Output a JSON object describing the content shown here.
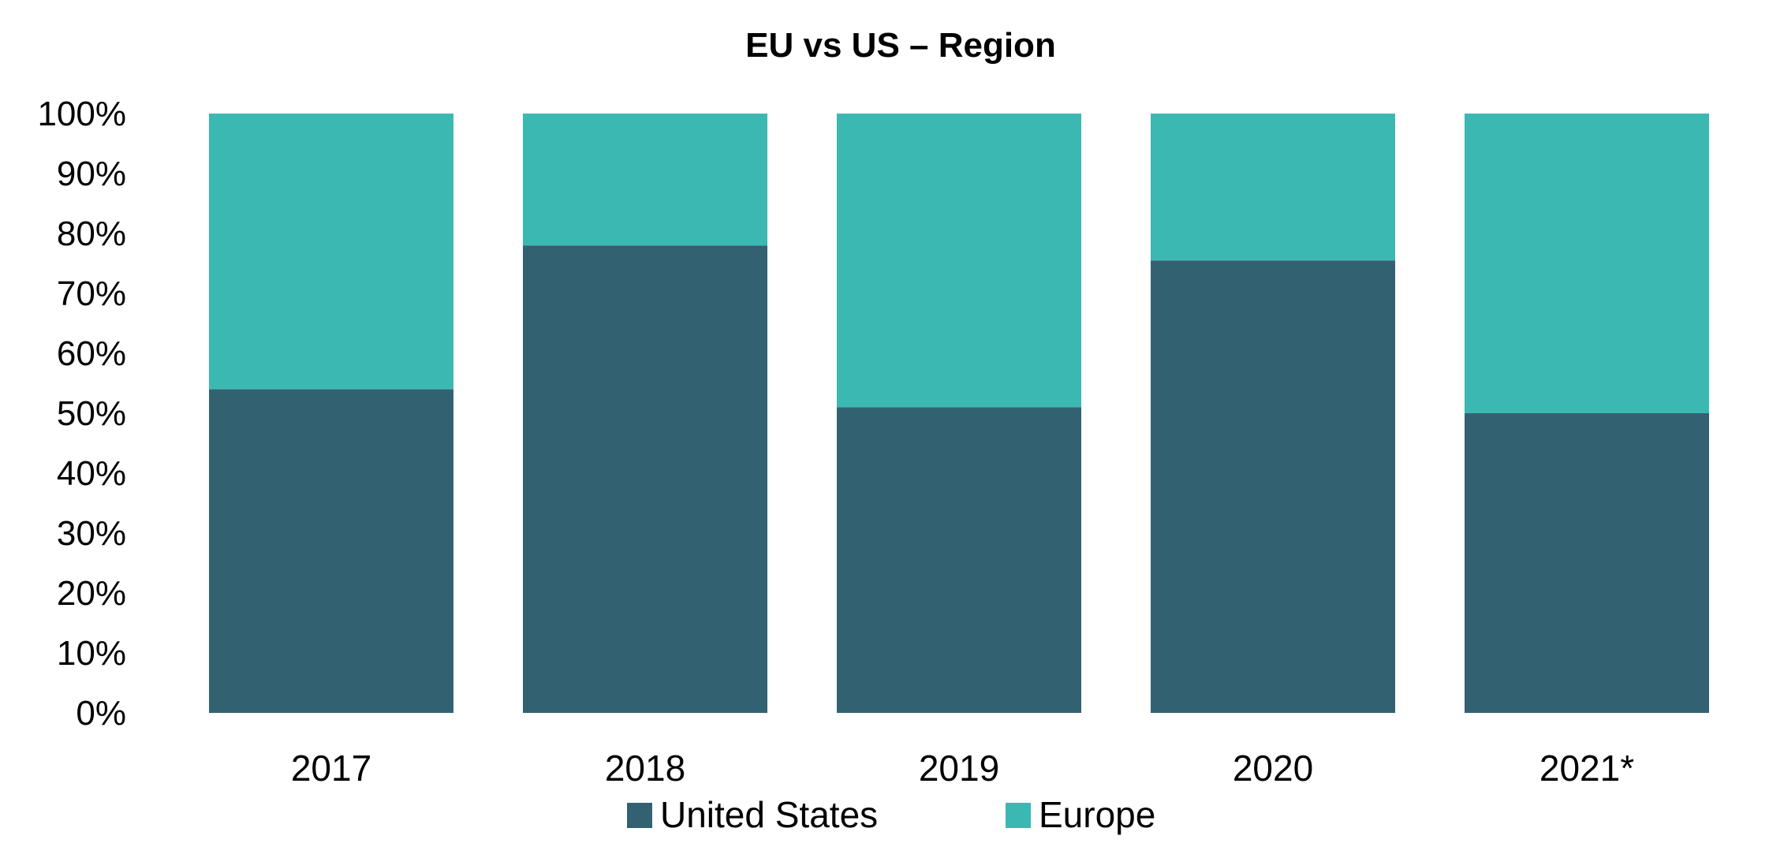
{
  "chart_data": {
    "type": "bar",
    "stacked": true,
    "percent_stacked": true,
    "title": "EU vs US – Region",
    "categories": [
      "2017",
      "2018",
      "2019",
      "2020",
      "2021*"
    ],
    "series": [
      {
        "name": "United States",
        "color": "#326272",
        "values": [
          54,
          78,
          51,
          75.5,
          50
        ]
      },
      {
        "name": "Europe",
        "color": "#3cb8b2",
        "values": [
          46,
          22,
          49,
          24.5,
          50
        ]
      }
    ],
    "y_ticks": [
      "0%",
      "10%",
      "20%",
      "30%",
      "40%",
      "50%",
      "60%",
      "70%",
      "80%",
      "90%",
      "100%"
    ],
    "ylim": [
      0,
      100
    ],
    "grid": false,
    "legend_position": "bottom"
  }
}
